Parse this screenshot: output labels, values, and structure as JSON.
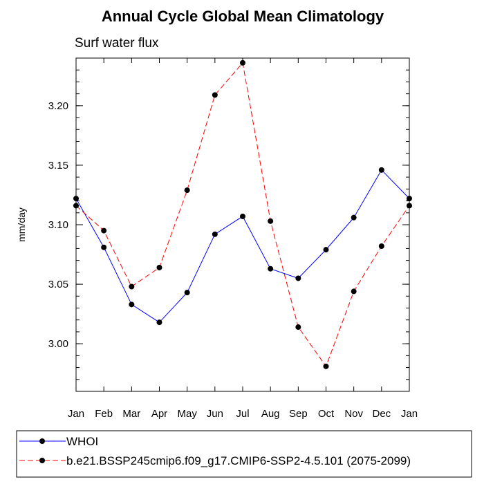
{
  "chart_data": {
    "type": "line",
    "title": "Annual Cycle Global Mean Climatology",
    "subtitle": "Surf water flux",
    "ylabel": "mm/day",
    "xlabel": "",
    "categories": [
      "Jan",
      "Feb",
      "Mar",
      "Apr",
      "May",
      "Jun",
      "Jul",
      "Aug",
      "Sep",
      "Oct",
      "Nov",
      "Dec",
      "Jan"
    ],
    "ylim": [
      2.96,
      3.24
    ],
    "yticks": [
      3.0,
      3.05,
      3.1,
      3.15,
      3.2
    ],
    "ytick_labels": [
      "3.00",
      "3.05",
      "3.10",
      "3.15",
      "3.20"
    ],
    "grid": false,
    "legend_position": "bottom",
    "series": [
      {
        "name": "WHOI",
        "color": "#0000ff",
        "line_style": "solid",
        "marker": "circle",
        "values": [
          3.122,
          3.081,
          3.033,
          3.018,
          3.043,
          3.092,
          3.107,
          3.063,
          3.055,
          3.079,
          3.106,
          3.146,
          3.122
        ]
      },
      {
        "name": "b.e21.BSSP245cmip6.f09_g17.CMIP6-SSP2-4.5.101 (2075-2099)",
        "color": "#ff0000",
        "line_style": "dashed",
        "marker": "circle",
        "values": [
          3.116,
          3.095,
          3.048,
          3.064,
          3.129,
          3.209,
          3.236,
          3.103,
          3.014,
          2.981,
          3.044,
          3.082,
          3.116
        ]
      }
    ]
  }
}
